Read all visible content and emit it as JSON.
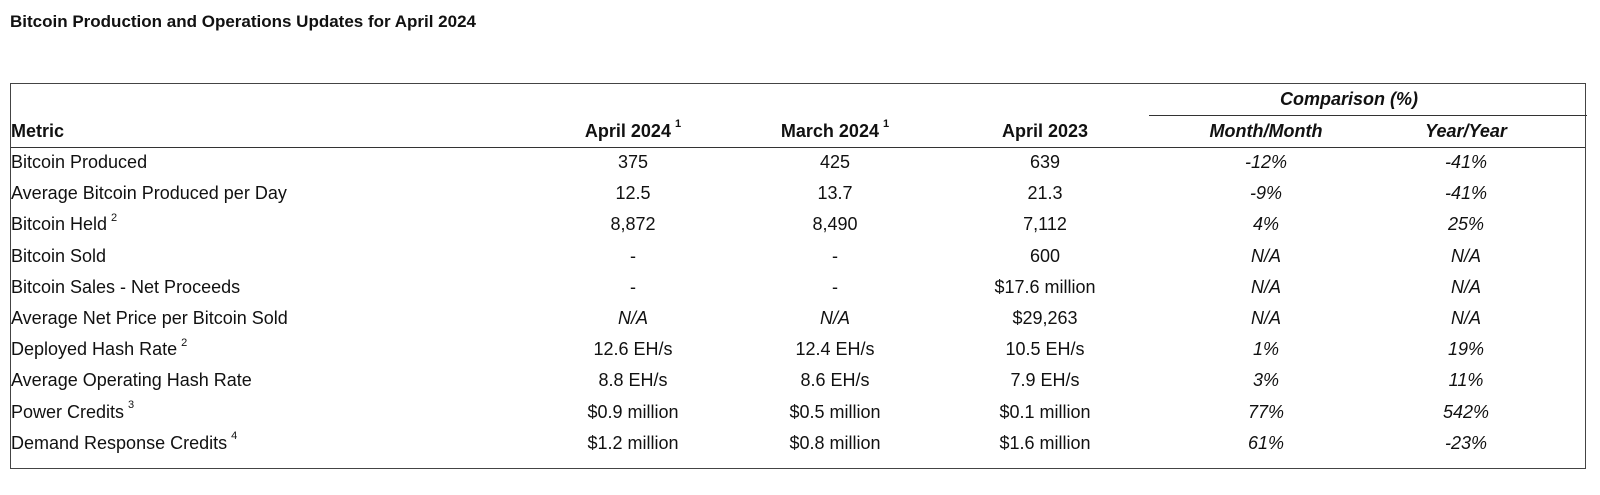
{
  "title": "Bitcoin Production and Operations Updates for April 2024",
  "header": {
    "group_label": "Comparison (%)",
    "columns": [
      {
        "label": "Metric",
        "note": ""
      },
      {
        "label": "April 2024",
        "note": "1"
      },
      {
        "label": "March 2024",
        "note": "1"
      },
      {
        "label": "April 2023",
        "note": ""
      },
      {
        "label": "Month/Month",
        "note": ""
      },
      {
        "label": "Year/Year",
        "note": ""
      }
    ]
  },
  "rows": [
    {
      "metric": "Bitcoin Produced",
      "note": "",
      "apr2024": "375",
      "mar2024": "425",
      "apr2023": "639",
      "mom": "-12%",
      "yoy": "-41%"
    },
    {
      "metric": "Average Bitcoin Produced per Day",
      "note": "",
      "apr2024": "12.5",
      "mar2024": "13.7",
      "apr2023": "21.3",
      "mom": "-9%",
      "yoy": "-41%"
    },
    {
      "metric": "Bitcoin Held",
      "note": "2",
      "apr2024": "8,872",
      "mar2024": "8,490",
      "apr2023": "7,112",
      "mom": "4%",
      "yoy": "25%"
    },
    {
      "metric": "Bitcoin Sold",
      "note": "",
      "apr2024": "-",
      "mar2024": "-",
      "apr2023": "600",
      "mom": "N/A",
      "yoy": "N/A"
    },
    {
      "metric": "Bitcoin Sales - Net Proceeds",
      "note": "",
      "apr2024": "-",
      "mar2024": "-",
      "apr2023": "$17.6 million",
      "mom": "N/A",
      "yoy": "N/A"
    },
    {
      "metric": "Average Net Price per Bitcoin Sold",
      "note": "",
      "apr2024": "N/A",
      "mar2024": "N/A",
      "apr2023": "$29,263",
      "mom": "N/A",
      "yoy": "N/A"
    },
    {
      "metric": "Deployed Hash Rate",
      "note": "2",
      "apr2024": "12.6 EH/s",
      "mar2024": "12.4 EH/s",
      "apr2023": "10.5 EH/s",
      "mom": "1%",
      "yoy": "19%"
    },
    {
      "metric": "Average Operating Hash Rate",
      "note": "",
      "apr2024": "8.8 EH/s",
      "mar2024": "8.6 EH/s",
      "apr2023": "7.9 EH/s",
      "mom": "3%",
      "yoy": "11%"
    },
    {
      "metric": "Power Credits",
      "note": "3",
      "apr2024": "$0.9 million",
      "mar2024": "$0.5 million",
      "apr2023": "$0.1 million",
      "mom": "77%",
      "yoy": "542%"
    },
    {
      "metric": "Demand Response Credits",
      "note": "4",
      "apr2024": "$1.2 million",
      "mar2024": "$0.8 million",
      "apr2023": "$1.6 million",
      "mom": "61%",
      "yoy": "-23%"
    }
  ]
}
